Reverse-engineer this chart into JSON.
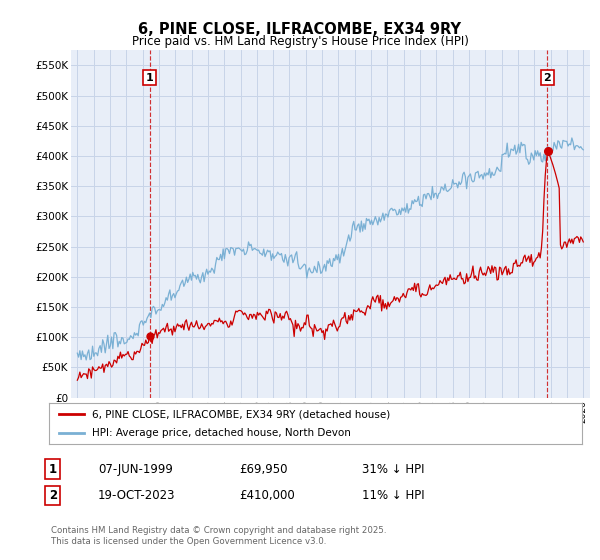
{
  "title": "6, PINE CLOSE, ILFRACOMBE, EX34 9RY",
  "subtitle": "Price paid vs. HM Land Registry's House Price Index (HPI)",
  "ylim": [
    0,
    575000
  ],
  "yticks": [
    0,
    50000,
    100000,
    150000,
    200000,
    250000,
    300000,
    350000,
    400000,
    450000,
    500000,
    550000
  ],
  "ytick_labels": [
    "£0",
    "£50K",
    "£100K",
    "£150K",
    "£200K",
    "£250K",
    "£300K",
    "£350K",
    "£400K",
    "£450K",
    "£500K",
    "£550K"
  ],
  "x_start_year": 1995,
  "x_end_year": 2026,
  "sale1_year": 1999.44,
  "sale1_price": 69950,
  "sale1_label": "1",
  "sale2_year": 2023.8,
  "sale2_price": 410000,
  "sale2_label": "2",
  "hpi_color": "#7ab0d4",
  "price_color": "#cc0000",
  "vline_color": "#cc0000",
  "grid_color": "#c8d4e8",
  "legend_label1": "6, PINE CLOSE, ILFRACOMBE, EX34 9RY (detached house)",
  "legend_label2": "HPI: Average price, detached house, North Devon",
  "table_row1": [
    "1",
    "07-JUN-1999",
    "£69,950",
    "31% ↓ HPI"
  ],
  "table_row2": [
    "2",
    "19-OCT-2023",
    "£410,000",
    "11% ↓ HPI"
  ],
  "footnote": "Contains HM Land Registry data © Crown copyright and database right 2025.\nThis data is licensed under the Open Government Licence v3.0.",
  "bg_color": "#ffffff",
  "plot_bg_color": "#e8eef8"
}
